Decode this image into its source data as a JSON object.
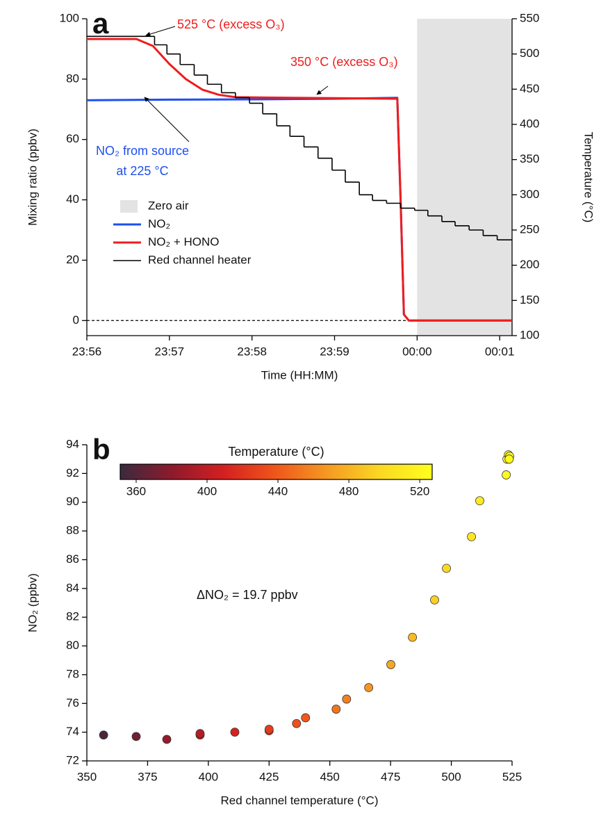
{
  "chart_data": [
    {
      "type": "line",
      "panel_label": "a",
      "x_label": "Time (HH:MM)",
      "y_label": "Mixing ratio (ppbv)",
      "y2_label": "Temperature (°C)",
      "xlim": [
        0,
        5.15
      ],
      "xticks": [
        {
          "value": 0,
          "label": "23:56"
        },
        {
          "value": 1,
          "label": "23:57"
        },
        {
          "value": 2,
          "label": "23:58"
        },
        {
          "value": 3,
          "label": "23:59"
        },
        {
          "value": 4,
          "label": "00:00"
        },
        {
          "value": 5,
          "label": "00:01"
        }
      ],
      "ylim": [
        -5,
        100
      ],
      "yticks": [
        0,
        20,
        40,
        60,
        80,
        100
      ],
      "y2lim": [
        100,
        550
      ],
      "y2ticks": [
        100,
        150,
        200,
        250,
        300,
        350,
        400,
        450,
        500,
        550
      ],
      "hline": 0,
      "shaded_region": {
        "name": "Zero air",
        "color": "#e3e3e3",
        "x": [
          4,
          5.15
        ]
      },
      "series": [
        {
          "name": "NO₂",
          "color": "#1d4ff0",
          "x": [
            0,
            1,
            2,
            3,
            3.76,
            3.8,
            3.84,
            3.9,
            5.15
          ],
          "values": [
            73,
            73.2,
            73.3,
            73.5,
            73.8,
            40,
            2,
            0,
            0
          ]
        },
        {
          "name": "NO₂ + HONO",
          "color": "#f01c1c",
          "x": [
            0,
            0.6,
            0.8,
            1.0,
            1.2,
            1.4,
            1.6,
            1.8,
            2.5,
            3.76,
            3.8,
            3.84,
            3.9,
            5.15
          ],
          "values": [
            93.3,
            93.3,
            91,
            85,
            80,
            76.5,
            74.8,
            74,
            73.8,
            73.5,
            40,
            2,
            0,
            0
          ]
        },
        {
          "name": "Red channel heater",
          "color": "#000000",
          "axis": "y2",
          "step": true,
          "x": [
            0,
            0.82,
            0.97,
            1.13,
            1.3,
            1.46,
            1.63,
            1.8,
            1.97,
            2.13,
            2.3,
            2.46,
            2.63,
            2.8,
            2.97,
            3.13,
            3.3,
            3.46,
            3.63,
            3.8,
            3.97,
            4.13,
            4.3,
            4.46,
            4.63,
            4.8,
            4.97
          ],
          "values": [
            525,
            513,
            500,
            485,
            470,
            457,
            445,
            438,
            430,
            415,
            398,
            383,
            368,
            352,
            335,
            318,
            300,
            292,
            288,
            281,
            278,
            270,
            262,
            256,
            250,
            242,
            236
          ]
        }
      ],
      "annotations": [
        {
          "text": "525 °C (excess O₃)",
          "color": "#f01c1c"
        },
        {
          "text": "350 °C (excess O₃)",
          "color": "#f01c1c"
        },
        {
          "text": "NO₂ from source",
          "color": "#1d4ff0"
        },
        {
          "text": "at 225 °C",
          "color": "#1d4ff0"
        }
      ]
    },
    {
      "type": "scatter",
      "panel_label": "b",
      "x_label": "Red channel temperature (°C)",
      "y_label": "NO₂ (ppbv)",
      "annotation": "ΔNO₂ = 19.7 ppbv",
      "xlim": [
        350,
        525
      ],
      "xticks": [
        350,
        375,
        400,
        425,
        450,
        475,
        500,
        525
      ],
      "ylim": [
        72,
        94
      ],
      "yticks": [
        72,
        74,
        76,
        78,
        80,
        82,
        84,
        86,
        88,
        90,
        92,
        94
      ],
      "x": [
        356.9,
        370.3,
        382.9,
        396.6,
        396.6,
        410.9,
        425,
        425,
        436.3,
        440,
        452.6,
        456.9,
        466,
        475.1,
        484,
        493.1,
        498,
        508.3,
        511.7,
        522.6,
        522.9,
        523.5,
        524,
        523.8
      ],
      "values": [
        73.8,
        73.7,
        73.5,
        73.8,
        73.9,
        74.0,
        74.1,
        74.2,
        74.6,
        75.0,
        75.6,
        76.3,
        77.1,
        78.7,
        80.6,
        83.2,
        85.4,
        87.6,
        90.1,
        91.9,
        93.0,
        93.3,
        93.2,
        93.0
      ],
      "color_by": "x",
      "colormap": [
        "#3a2a3f",
        "#8e1a2c",
        "#d42020",
        "#f0571c",
        "#f59a22",
        "#fbd823",
        "#ffff1e"
      ],
      "colorbar": {
        "label": "Temperature (°C)",
        "clim": [
          351,
          527
        ],
        "ticks": [
          360,
          400,
          440,
          480,
          520
        ]
      }
    }
  ]
}
